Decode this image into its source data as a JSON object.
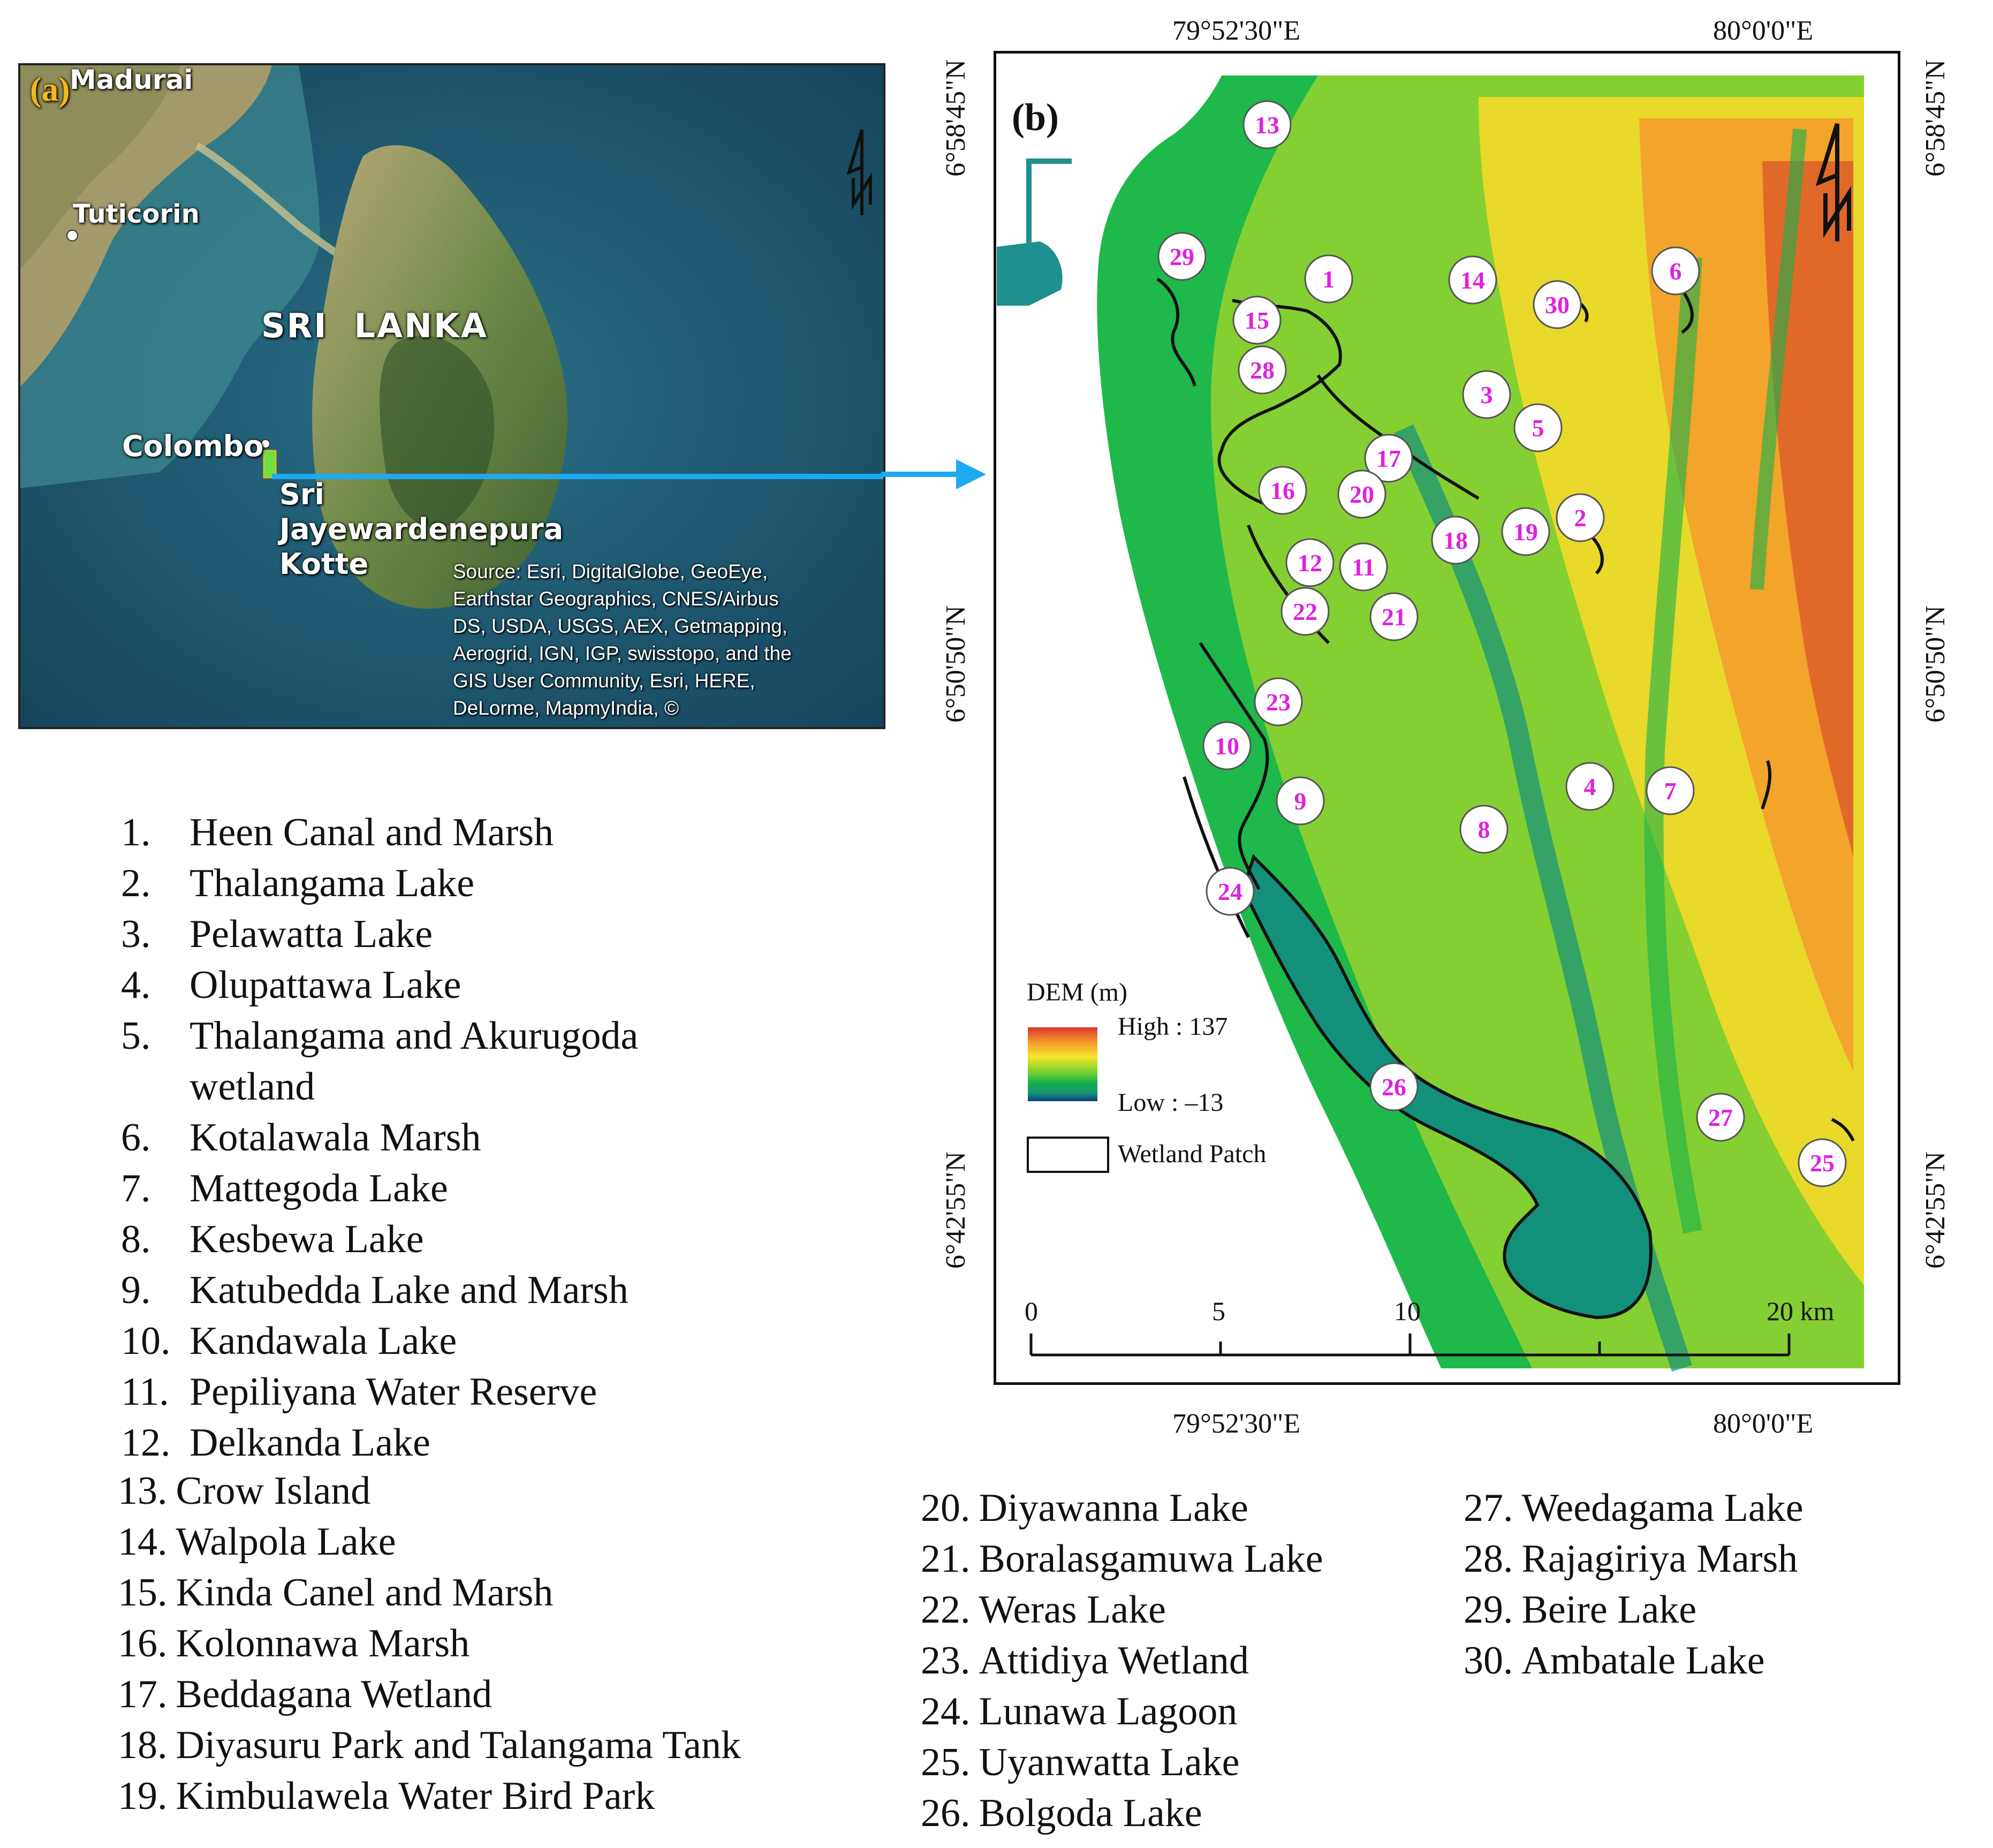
{
  "panel_a": {
    "label": "(a)",
    "places": {
      "madurai": "Madurai",
      "tuticorin": "Tuticorin",
      "sri_lanka": "SRI  LANKA",
      "colombo": "Colombo",
      "kotte_1": "Sri",
      "kotte_2": "Jayewardenepura",
      "kotte_3": "Kotte"
    },
    "source_lines": [
      "Source: Esri, DigitalGlobe, GeoEye,",
      "Earthstar Geographics, CNES/Airbus",
      "DS, USDA, USGS, AEX, Getmapping,",
      "Aerogrid, IGN, IGP, swisstopo, and the",
      "GIS User Community, Esri, HERE,",
      "DeLorme, MapmyIndia, ©"
    ],
    "north_icon": "north-arrow-icon",
    "colors": {
      "sea": "#1d5a72",
      "land": "#5f7a3e",
      "arrow": "#1ea9f0"
    }
  },
  "panel_b": {
    "label": "(b)",
    "axes": {
      "top_left": "79°52'30\"E",
      "top_right": "80°0'0\"E",
      "bottom_left": "79°52'30\"E",
      "bottom_right": "80°0'0\"E",
      "left_top": "6°58'45\"N",
      "left_mid": "6°50'50\"N",
      "left_bottom": "6°42'55\"N",
      "right_top": "6°58'45\"N",
      "right_mid": "6°50'50\"N",
      "right_bottom": "6°42'55\"N"
    },
    "legend": {
      "title": "DEM (m)",
      "high": "High : 137",
      "low": "Low : –13",
      "patch": "Wetland Patch",
      "colors": [
        "#d9352a",
        "#f39a2b",
        "#f6e52a",
        "#7ad12e",
        "#16b04a",
        "#13907a",
        "#0b3a7a"
      ]
    },
    "scale": {
      "ticks": [
        "0",
        "5",
        "10",
        "20 km"
      ]
    },
    "markers": [
      "1",
      "2",
      "3",
      "4",
      "5",
      "6",
      "7",
      "8",
      "9",
      "10",
      "11",
      "12",
      "13",
      "14",
      "15",
      "16",
      "17",
      "18",
      "19",
      "20",
      "21",
      "22",
      "23",
      "24",
      "25",
      "26",
      "27",
      "28",
      "29",
      "30"
    ],
    "marker_color": "#e020e0",
    "north_icon": "north-arrow-icon"
  },
  "list_left": [
    {
      "num": "1.",
      "name": "Heen Canal and Marsh"
    },
    {
      "num": "2.",
      "name": "Thalangama Lake"
    },
    {
      "num": "3.",
      "name": "Pelawatta Lake"
    },
    {
      "num": "4.",
      "name": "Olupattawa Lake"
    },
    {
      "num": "5.",
      "name": "Thalangama and Akurugoda",
      "cont": "wetland"
    },
    {
      "num": "6.",
      "name": "Kotalawala Marsh"
    },
    {
      "num": "7.",
      "name": "Mattegoda Lake"
    },
    {
      "num": "8.",
      "name": "Kesbewa Lake"
    },
    {
      "num": "9.",
      "name": "Katubedda Lake and Marsh"
    },
    {
      "num": "10.",
      "name": "Kandawala Lake"
    },
    {
      "num": "11.",
      "name": "Pepiliyana Water Reserve"
    },
    {
      "num": "12.",
      "name": "Delkanda Lake"
    }
  ],
  "list_left2": [
    {
      "num": "13.",
      "name": "Crow Island"
    },
    {
      "num": "14.",
      "name": "Walpola Lake"
    },
    {
      "num": "15.",
      "name": "Kinda Canel and Marsh"
    },
    {
      "num": "16.",
      "name": "Kolonnawa Marsh"
    },
    {
      "num": "17.",
      "name": "Beddagana Wetland"
    },
    {
      "num": "18.",
      "name": "Diyasuru Park and Talangama Tank"
    },
    {
      "num": "19.",
      "name": "Kimbulawela Water Bird Park"
    }
  ],
  "list_mid": [
    {
      "num": "20.",
      "name": "Diyawanna Lake"
    },
    {
      "num": "21.",
      "name": "Boralasgamuwa Lake"
    },
    {
      "num": "22.",
      "name": "Weras Lake"
    },
    {
      "num": "23.",
      "name": "Attidiya Wetland"
    },
    {
      "num": "24.",
      "name": "Lunawa Lagoon"
    },
    {
      "num": "25.",
      "name": "Uyanwatta Lake"
    },
    {
      "num": "26.",
      "name": "Bolgoda Lake"
    }
  ],
  "list_right": [
    {
      "num": "27.",
      "name": "Weedagama Lake"
    },
    {
      "num": "28.",
      "name": "Rajagiriya Marsh"
    },
    {
      "num": "29.",
      "name": "Beire Lake"
    },
    {
      "num": "30.",
      "name": "Ambatale Lake"
    }
  ]
}
